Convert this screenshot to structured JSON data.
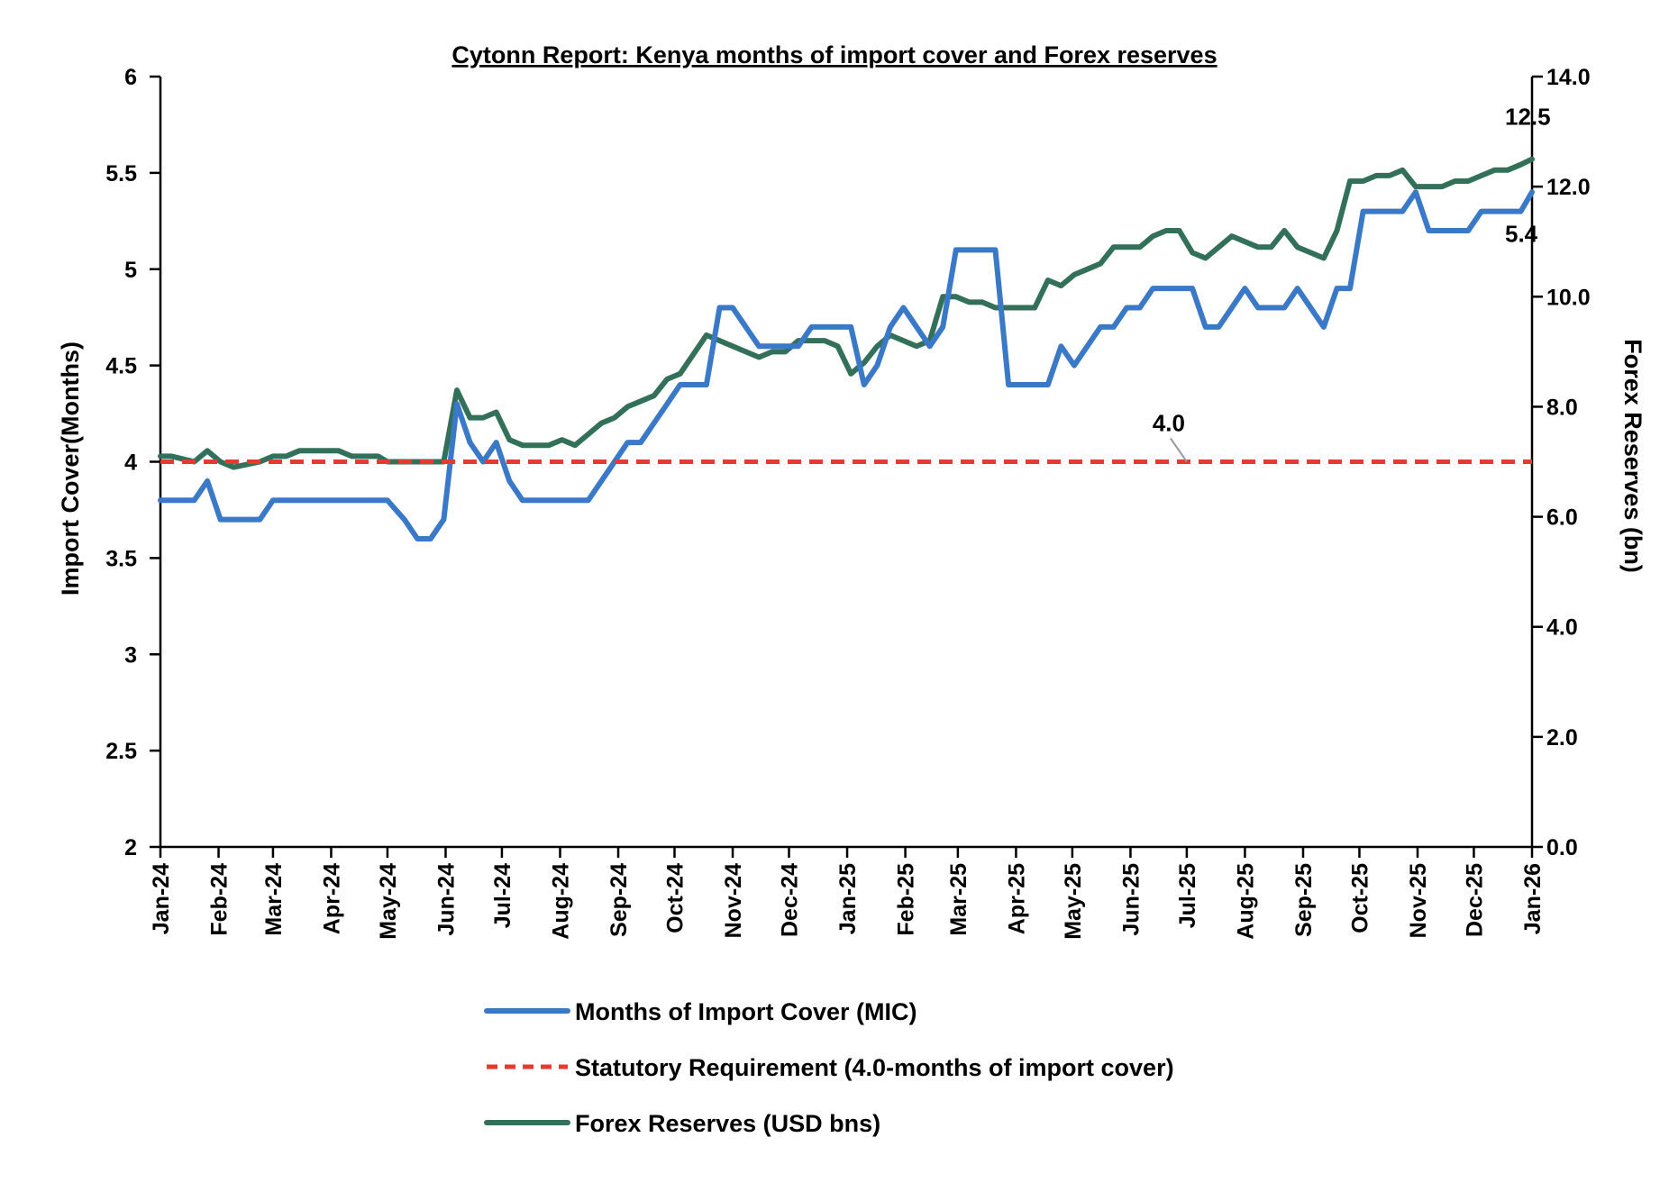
{
  "chart_data": {
    "type": "line",
    "title": "Cytonn Report: Kenya months of import cover and Forex reserves",
    "ylabel_left": "Import Cover(Months)",
    "ylabel_right": "Forex Reserves (bn)",
    "y_left_range": [
      2,
      6
    ],
    "y_left_ticks": [
      "2",
      "2.5",
      "3",
      "3.5",
      "4",
      "4.5",
      "5",
      "5.5",
      "6"
    ],
    "y_right_range": [
      0,
      14
    ],
    "y_right_ticks": [
      "0.0",
      "2.0",
      "4.0",
      "6.0",
      "8.0",
      "10.0",
      "12.0",
      "14.0"
    ],
    "x_range": [
      "2024-01-01",
      "2026-01-01"
    ],
    "x_ticks": [
      {
        "date": "2024-01-01",
        "label": "Jan-24"
      },
      {
        "date": "2024-02-01",
        "label": "Feb-24"
      },
      {
        "date": "2024-03-01",
        "label": "Mar-24"
      },
      {
        "date": "2024-04-01",
        "label": "Apr-24"
      },
      {
        "date": "2024-05-01",
        "label": "May-24"
      },
      {
        "date": "2024-06-01",
        "label": "Jun-24"
      },
      {
        "date": "2024-07-01",
        "label": "Jul-24"
      },
      {
        "date": "2024-08-01",
        "label": "Aug-24"
      },
      {
        "date": "2024-09-01",
        "label": "Sep-24"
      },
      {
        "date": "2024-10-01",
        "label": "Oct-24"
      },
      {
        "date": "2024-11-01",
        "label": "Nov-24"
      },
      {
        "date": "2024-12-01",
        "label": "Dec-24"
      },
      {
        "date": "2025-01-01",
        "label": "Jan-25"
      },
      {
        "date": "2025-02-01",
        "label": "Feb-25"
      },
      {
        "date": "2025-03-01",
        "label": "Mar-25"
      },
      {
        "date": "2025-04-01",
        "label": "Apr-25"
      },
      {
        "date": "2025-05-01",
        "label": "May-25"
      },
      {
        "date": "2025-06-01",
        "label": "Jun-25"
      },
      {
        "date": "2025-07-01",
        "label": "Jul-25"
      },
      {
        "date": "2025-08-01",
        "label": "Aug-25"
      },
      {
        "date": "2025-09-01",
        "label": "Sep-25"
      },
      {
        "date": "2025-10-01",
        "label": "Oct-25"
      },
      {
        "date": "2025-11-01",
        "label": "Nov-25"
      },
      {
        "date": "2025-12-01",
        "label": "Dec-25"
      },
      {
        "date": "2026-01-01",
        "label": "Jan-26"
      }
    ],
    "grid": false,
    "legend_position": "bottom",
    "series": [
      {
        "name": "Months of Import Cover (MIC)",
        "axis": "left",
        "color": "#3a78c8",
        "style": "solid",
        "end_label": "5.4",
        "points": [
          [
            "2024-01-01",
            3.8
          ],
          [
            "2024-01-07",
            3.8
          ],
          [
            "2024-01-19",
            3.8
          ],
          [
            "2024-01-26",
            3.9
          ],
          [
            "2024-02-02",
            3.7
          ],
          [
            "2024-02-09",
            3.7
          ],
          [
            "2024-02-23",
            3.7
          ],
          [
            "2024-03-01",
            3.8
          ],
          [
            "2024-03-15",
            3.8
          ],
          [
            "2024-03-29",
            3.8
          ],
          [
            "2024-04-12",
            3.8
          ],
          [
            "2024-04-26",
            3.8
          ],
          [
            "2024-05-01",
            3.8
          ],
          [
            "2024-05-10",
            3.7
          ],
          [
            "2024-05-17",
            3.6
          ],
          [
            "2024-05-24",
            3.6
          ],
          [
            "2024-05-31",
            3.7
          ],
          [
            "2024-06-07",
            4.3
          ],
          [
            "2024-06-14",
            4.1
          ],
          [
            "2024-06-21",
            4.0
          ],
          [
            "2024-06-28",
            4.1
          ],
          [
            "2024-07-05",
            3.9
          ],
          [
            "2024-07-12",
            3.8
          ],
          [
            "2024-07-19",
            3.8
          ],
          [
            "2024-08-02",
            3.8
          ],
          [
            "2024-08-16",
            3.8
          ],
          [
            "2024-08-23",
            3.9
          ],
          [
            "2024-08-30",
            4.0
          ],
          [
            "2024-09-06",
            4.1
          ],
          [
            "2024-09-13",
            4.1
          ],
          [
            "2024-09-20",
            4.2
          ],
          [
            "2024-09-27",
            4.3
          ],
          [
            "2024-10-04",
            4.4
          ],
          [
            "2024-10-18",
            4.4
          ],
          [
            "2024-10-25",
            4.8
          ],
          [
            "2024-11-01",
            4.8
          ],
          [
            "2024-11-08",
            4.7
          ],
          [
            "2024-11-15",
            4.6
          ],
          [
            "2024-11-22",
            4.6
          ],
          [
            "2024-11-29",
            4.6
          ],
          [
            "2024-12-06",
            4.6
          ],
          [
            "2024-12-13",
            4.7
          ],
          [
            "2024-12-20",
            4.7
          ],
          [
            "2024-12-27",
            4.7
          ],
          [
            "2025-01-03",
            4.7
          ],
          [
            "2025-01-10",
            4.4
          ],
          [
            "2025-01-17",
            4.5
          ],
          [
            "2025-01-24",
            4.7
          ],
          [
            "2025-01-31",
            4.8
          ],
          [
            "2025-02-07",
            4.7
          ],
          [
            "2025-02-14",
            4.6
          ],
          [
            "2025-02-21",
            4.7
          ],
          [
            "2025-02-28",
            5.1
          ],
          [
            "2025-03-07",
            5.1
          ],
          [
            "2025-03-14",
            5.1
          ],
          [
            "2025-03-21",
            5.1
          ],
          [
            "2025-03-28",
            4.4
          ],
          [
            "2025-04-04",
            4.4
          ],
          [
            "2025-04-11",
            4.4
          ],
          [
            "2025-04-18",
            4.4
          ],
          [
            "2025-04-25",
            4.6
          ],
          [
            "2025-05-02",
            4.5
          ],
          [
            "2025-05-09",
            4.6
          ],
          [
            "2025-05-16",
            4.7
          ],
          [
            "2025-05-23",
            4.7
          ],
          [
            "2025-05-30",
            4.8
          ],
          [
            "2025-06-06",
            4.8
          ],
          [
            "2025-06-13",
            4.9
          ],
          [
            "2025-06-20",
            4.9
          ],
          [
            "2025-06-27",
            4.9
          ],
          [
            "2025-07-04",
            4.9
          ],
          [
            "2025-07-11",
            4.7
          ],
          [
            "2025-07-18",
            4.7
          ],
          [
            "2025-07-25",
            4.8
          ],
          [
            "2025-08-01",
            4.9
          ],
          [
            "2025-08-08",
            4.8
          ],
          [
            "2025-08-15",
            4.8
          ],
          [
            "2025-08-22",
            4.8
          ],
          [
            "2025-08-29",
            4.9
          ],
          [
            "2025-09-05",
            4.8
          ],
          [
            "2025-09-12",
            4.7
          ],
          [
            "2025-09-19",
            4.9
          ],
          [
            "2025-09-26",
            4.9
          ],
          [
            "2025-10-03",
            5.3
          ],
          [
            "2025-10-10",
            5.3
          ],
          [
            "2025-10-17",
            5.3
          ],
          [
            "2025-10-24",
            5.3
          ],
          [
            "2025-10-31",
            5.4
          ],
          [
            "2025-11-07",
            5.2
          ],
          [
            "2025-11-14",
            5.2
          ],
          [
            "2025-11-21",
            5.2
          ],
          [
            "2025-11-28",
            5.2
          ],
          [
            "2025-12-05",
            5.3
          ],
          [
            "2025-12-12",
            5.3
          ],
          [
            "2025-12-19",
            5.3
          ],
          [
            "2025-12-26",
            5.3
          ],
          [
            "2026-01-01",
            5.4
          ]
        ]
      },
      {
        "name": "Statutory Requirement (4.0-months of import cover)",
        "axis": "left",
        "color": "#e53a2f",
        "style": "dashed",
        "callout_label": "4.0",
        "callout_date": "2025-07-01",
        "points": [
          [
            "2024-01-01",
            4.0
          ],
          [
            "2026-01-01",
            4.0
          ]
        ]
      },
      {
        "name": "Forex Reserves (USD bns)",
        "axis": "right",
        "color": "#33705a",
        "style": "solid",
        "end_label": "12.5",
        "points": [
          [
            "2024-01-01",
            7.1
          ],
          [
            "2024-01-07",
            7.1
          ],
          [
            "2024-01-19",
            7.0
          ],
          [
            "2024-01-26",
            7.2
          ],
          [
            "2024-02-02",
            7.0
          ],
          [
            "2024-02-09",
            6.9
          ],
          [
            "2024-02-23",
            7.0
          ],
          [
            "2024-03-01",
            7.1
          ],
          [
            "2024-03-08",
            7.1
          ],
          [
            "2024-03-15",
            7.2
          ],
          [
            "2024-03-22",
            7.2
          ],
          [
            "2024-04-05",
            7.2
          ],
          [
            "2024-04-12",
            7.1
          ],
          [
            "2024-04-19",
            7.1
          ],
          [
            "2024-04-26",
            7.1
          ],
          [
            "2024-05-01",
            7.0
          ],
          [
            "2024-05-10",
            7.0
          ],
          [
            "2024-05-17",
            7.0
          ],
          [
            "2024-05-31",
            7.0
          ],
          [
            "2024-06-07",
            8.3
          ],
          [
            "2024-06-14",
            7.8
          ],
          [
            "2024-06-21",
            7.8
          ],
          [
            "2024-06-28",
            7.9
          ],
          [
            "2024-07-05",
            7.4
          ],
          [
            "2024-07-12",
            7.3
          ],
          [
            "2024-07-19",
            7.3
          ],
          [
            "2024-07-26",
            7.3
          ],
          [
            "2024-08-02",
            7.4
          ],
          [
            "2024-08-09",
            7.3
          ],
          [
            "2024-08-16",
            7.5
          ],
          [
            "2024-08-23",
            7.7
          ],
          [
            "2024-08-30",
            7.8
          ],
          [
            "2024-09-06",
            8.0
          ],
          [
            "2024-09-13",
            8.1
          ],
          [
            "2024-09-20",
            8.2
          ],
          [
            "2024-09-27",
            8.5
          ],
          [
            "2024-10-04",
            8.6
          ],
          [
            "2024-10-18",
            9.3
          ],
          [
            "2024-10-25",
            9.2
          ],
          [
            "2024-11-01",
            9.1
          ],
          [
            "2024-11-08",
            9.0
          ],
          [
            "2024-11-15",
            8.9
          ],
          [
            "2024-11-22",
            9.0
          ],
          [
            "2024-11-29",
            9.0
          ],
          [
            "2024-12-06",
            9.2
          ],
          [
            "2024-12-13",
            9.2
          ],
          [
            "2024-12-20",
            9.2
          ],
          [
            "2024-12-27",
            9.1
          ],
          [
            "2025-01-03",
            8.6
          ],
          [
            "2025-01-10",
            8.8
          ],
          [
            "2025-01-17",
            9.1
          ],
          [
            "2025-01-24",
            9.3
          ],
          [
            "2025-01-31",
            9.2
          ],
          [
            "2025-02-07",
            9.1
          ],
          [
            "2025-02-14",
            9.2
          ],
          [
            "2025-02-21",
            10.0
          ],
          [
            "2025-02-28",
            10.0
          ],
          [
            "2025-03-07",
            9.9
          ],
          [
            "2025-03-14",
            9.9
          ],
          [
            "2025-03-21",
            9.8
          ],
          [
            "2025-03-28",
            9.8
          ],
          [
            "2025-04-04",
            9.8
          ],
          [
            "2025-04-11",
            9.8
          ],
          [
            "2025-04-18",
            10.3
          ],
          [
            "2025-04-25",
            10.2
          ],
          [
            "2025-05-02",
            10.4
          ],
          [
            "2025-05-09",
            10.5
          ],
          [
            "2025-05-16",
            10.6
          ],
          [
            "2025-05-23",
            10.9
          ],
          [
            "2025-05-30",
            10.9
          ],
          [
            "2025-06-06",
            10.9
          ],
          [
            "2025-06-13",
            11.1
          ],
          [
            "2025-06-20",
            11.2
          ],
          [
            "2025-06-27",
            11.2
          ],
          [
            "2025-07-04",
            10.8
          ],
          [
            "2025-07-11",
            10.7
          ],
          [
            "2025-07-18",
            10.9
          ],
          [
            "2025-07-25",
            11.1
          ],
          [
            "2025-08-01",
            11.0
          ],
          [
            "2025-08-08",
            10.9
          ],
          [
            "2025-08-15",
            10.9
          ],
          [
            "2025-08-22",
            11.2
          ],
          [
            "2025-08-29",
            10.9
          ],
          [
            "2025-09-05",
            10.8
          ],
          [
            "2025-09-12",
            10.7
          ],
          [
            "2025-09-19",
            11.2
          ],
          [
            "2025-09-26",
            12.1
          ],
          [
            "2025-10-03",
            12.1
          ],
          [
            "2025-10-10",
            12.2
          ],
          [
            "2025-10-17",
            12.2
          ],
          [
            "2025-10-24",
            12.3
          ],
          [
            "2025-10-31",
            12.0
          ],
          [
            "2025-11-07",
            12.0
          ],
          [
            "2025-11-14",
            12.0
          ],
          [
            "2025-11-21",
            12.1
          ],
          [
            "2025-11-28",
            12.1
          ],
          [
            "2025-12-05",
            12.2
          ],
          [
            "2025-12-12",
            12.3
          ],
          [
            "2025-12-19",
            12.3
          ],
          [
            "2025-12-26",
            12.4
          ],
          [
            "2026-01-01",
            12.5
          ]
        ]
      }
    ]
  }
}
